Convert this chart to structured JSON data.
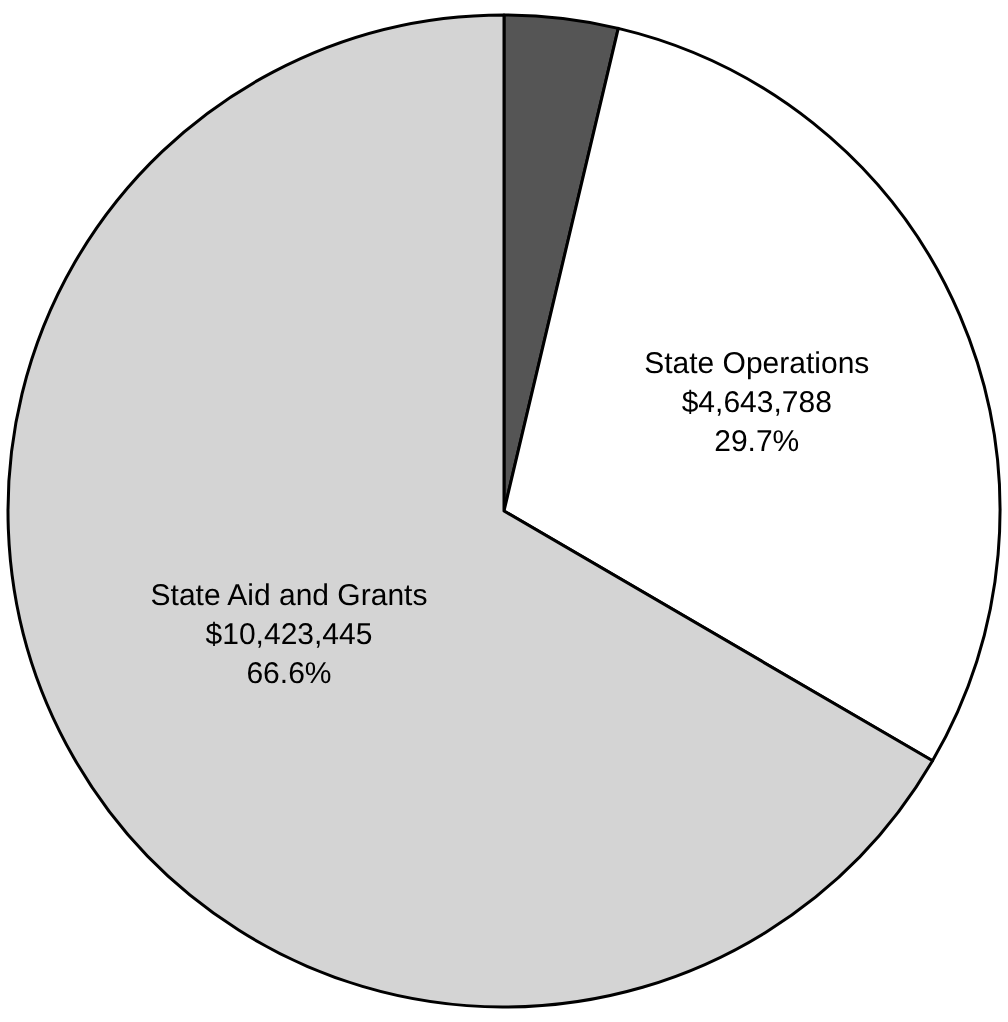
{
  "chart_data": {
    "type": "pie",
    "categories": [
      null,
      "State Operations",
      "State Aid and Grants"
    ],
    "values": [
      3.7,
      29.7,
      66.6
    ],
    "value_labels": [
      null,
      "$4,643,788\n29.7%",
      "$10,423,445\n66.6%"
    ],
    "colors": [
      "#555555",
      "#ffffff",
      "#d4d4d4"
    ],
    "legend": false
  }
}
